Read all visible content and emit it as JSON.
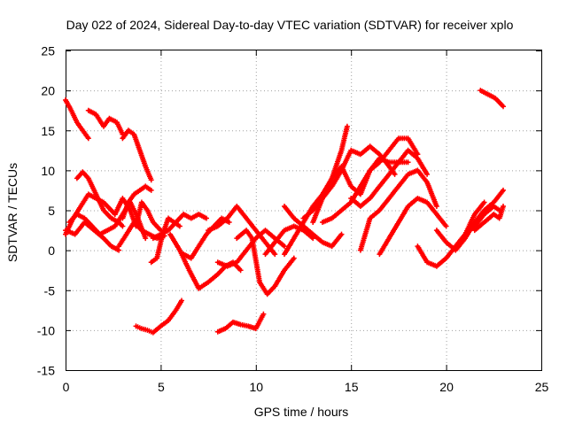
{
  "chart_data": {
    "type": "scatter",
    "title": "Day 022 of 2024, Sidereal Day-to-day VTEC variation (SDTVAR) for receiver xplo",
    "xlabel": "GPS time / hours",
    "ylabel": "SDTVAR / TECUs",
    "xlim": [
      0,
      25
    ],
    "ylim": [
      -15,
      25
    ],
    "xticks": [
      "0",
      "5",
      "10",
      "15",
      "20",
      "25"
    ],
    "yticks": [
      "-15",
      "-10",
      "-5",
      "0",
      "5",
      "10",
      "15",
      "20",
      "25"
    ],
    "grid": true,
    "marker": "+",
    "color": "#ff0000",
    "series": [
      {
        "name": "s01",
        "x": [
          0.0,
          0.3,
          0.6,
          0.9,
          1.2
        ],
        "y": [
          18.8,
          17.5,
          16.0,
          15.0,
          14.0
        ]
      },
      {
        "name": "s02",
        "x": [
          1.2,
          1.6,
          2.0,
          2.3,
          2.7,
          3.0
        ],
        "y": [
          17.5,
          17.0,
          15.5,
          16.5,
          16.0,
          14.5
        ]
      },
      {
        "name": "s03",
        "x": [
          3.0,
          3.3,
          3.6,
          3.9,
          4.2,
          4.5
        ],
        "y": [
          14.0,
          15.0,
          14.5,
          12.5,
          10.5,
          8.8
        ]
      },
      {
        "name": "s04",
        "x": [
          0.6,
          0.9,
          1.2,
          1.6,
          2.0,
          2.4,
          2.8,
          3.0
        ],
        "y": [
          9.0,
          9.8,
          9.0,
          7.0,
          5.0,
          4.0,
          3.5,
          3.0
        ]
      },
      {
        "name": "s05",
        "x": [
          3.0,
          3.3,
          3.6,
          3.9,
          4.2,
          4.5
        ],
        "y": [
          4.0,
          6.0,
          7.0,
          7.5,
          8.0,
          7.5
        ]
      },
      {
        "name": "s06",
        "x": [
          0.0,
          0.4,
          0.8,
          1.2,
          1.6,
          2.0,
          2.4,
          2.6
        ],
        "y": [
          2.0,
          4.0,
          5.5,
          7.0,
          6.5,
          6.0,
          5.0,
          4.5
        ]
      },
      {
        "name": "s07",
        "x": [
          2.6,
          3.0,
          3.4,
          3.7,
          4.0,
          4.3,
          4.6,
          5.0
        ],
        "y": [
          4.5,
          6.5,
          5.0,
          3.0,
          6.0,
          5.0,
          3.5,
          2.5
        ]
      },
      {
        "name": "s08",
        "x": [
          0.0,
          0.5,
          1.0,
          1.5,
          2.0,
          2.4,
          2.8
        ],
        "y": [
          2.5,
          2.0,
          3.5,
          2.5,
          1.5,
          0.5,
          0.0
        ]
      },
      {
        "name": "s09",
        "x": [
          2.8,
          3.2,
          3.6,
          4.0,
          4.4,
          4.8,
          5.2
        ],
        "y": [
          0.5,
          2.0,
          3.5,
          2.5,
          2.0,
          1.5,
          1.8
        ]
      },
      {
        "name": "s10",
        "x": [
          0.2,
          0.6,
          1.0,
          1.4,
          1.8,
          2.2,
          2.6,
          3.0,
          3.4,
          3.8,
          4.2
        ],
        "y": [
          3.5,
          4.5,
          4.0,
          3.0,
          2.0,
          2.5,
          3.0,
          4.5,
          6.0,
          4.0,
          1.5
        ]
      },
      {
        "name": "s11",
        "x": [
          4.6,
          5.0,
          5.4,
          5.8,
          6.2,
          6.6,
          7.0,
          7.4
        ],
        "y": [
          1.5,
          2.0,
          2.5,
          3.5,
          4.5,
          4.0,
          4.5,
          4.0
        ]
      },
      {
        "name": "s12",
        "x": [
          4.5,
          4.8,
          5.1,
          5.4,
          5.7,
          6.0
        ],
        "y": [
          -1.5,
          -1.0,
          2.0,
          4.0,
          3.5,
          3.0
        ]
      },
      {
        "name": "s13",
        "x": [
          5.5,
          6.0,
          6.5,
          7.0,
          7.5,
          8.0,
          8.4,
          8.8,
          9.2
        ],
        "y": [
          2.0,
          0.0,
          -2.5,
          -4.8,
          -4.0,
          -3.0,
          -2.0,
          -1.5,
          -2.5
        ]
      },
      {
        "name": "s14",
        "x": [
          6.2,
          6.6,
          7.0,
          7.4,
          7.8,
          8.2,
          8.6
        ],
        "y": [
          -0.5,
          -1.0,
          0.5,
          2.0,
          3.0,
          4.0,
          3.5
        ]
      },
      {
        "name": "s15",
        "x": [
          7.5,
          8.0,
          8.5,
          9.0,
          9.5,
          10.0,
          10.5,
          11.0
        ],
        "y": [
          2.5,
          3.0,
          4.0,
          5.5,
          4.0,
          2.5,
          1.0,
          -0.5
        ]
      },
      {
        "name": "s16",
        "x": [
          8.0,
          8.5,
          9.0,
          9.5,
          10.0,
          10.5,
          11.0,
          11.5
        ],
        "y": [
          -1.5,
          -2.0,
          -1.5,
          0.0,
          1.5,
          2.5,
          1.5,
          0.5
        ]
      },
      {
        "name": "s17",
        "x": [
          9.0,
          9.5,
          9.8,
          10.2,
          10.6,
          11.0,
          11.5,
          12.0
        ],
        "y": [
          1.5,
          2.5,
          1.5,
          -4.0,
          -5.5,
          -4.5,
          -2.5,
          -1.0
        ]
      },
      {
        "name": "s18",
        "x": [
          10.5,
          11.0,
          11.5,
          12.0,
          12.5,
          13.0
        ],
        "y": [
          -0.5,
          1.0,
          2.5,
          3.0,
          2.5,
          1.5
        ]
      },
      {
        "name": "s19",
        "x": [
          11.5,
          12.0,
          12.5,
          13.0,
          13.5,
          14.0,
          14.5
        ],
        "y": [
          5.5,
          4.0,
          3.0,
          2.0,
          1.0,
          0.5,
          2.0
        ]
      },
      {
        "name": "s20",
        "x": [
          11.5,
          12.0,
          12.5,
          13.0,
          13.5,
          14.0,
          14.5,
          14.8
        ],
        "y": [
          -0.5,
          1.5,
          3.5,
          5.5,
          7.0,
          9.0,
          12.5,
          15.5
        ]
      },
      {
        "name": "s21",
        "x": [
          12.5,
          13.0,
          13.5,
          14.0,
          14.5,
          15.0,
          15.5,
          16.0,
          16.5,
          17.0,
          17.3
        ],
        "y": [
          4.0,
          5.0,
          6.5,
          8.0,
          10.0,
          12.5,
          12.0,
          13.0,
          12.0,
          10.5,
          9.5
        ]
      },
      {
        "name": "s22",
        "x": [
          13.0,
          13.5,
          14.0,
          14.5,
          15.0,
          15.5,
          16.0,
          16.5,
          17.0,
          17.5,
          18.0,
          18.5
        ],
        "y": [
          3.5,
          6.5,
          9.0,
          10.5,
          8.0,
          7.0,
          10.0,
          11.0,
          12.5,
          14.0,
          14.0,
          12.0
        ]
      },
      {
        "name": "s23",
        "x": [
          13.5,
          14.0,
          14.5,
          15.0,
          15.5,
          16.0,
          16.5,
          17.0,
          17.5,
          18.0
        ],
        "y": [
          3.5,
          4.0,
          5.0,
          6.0,
          8.0,
          10.0,
          11.5,
          11.0,
          11.0,
          11.0
        ]
      },
      {
        "name": "s24",
        "x": [
          15.0,
          15.5,
          16.0,
          16.5,
          17.0,
          17.5,
          18.0,
          18.5,
          19.0
        ],
        "y": [
          6.5,
          5.5,
          6.5,
          8.0,
          9.5,
          11.0,
          12.5,
          11.5,
          9.5
        ]
      },
      {
        "name": "s25",
        "x": [
          15.5,
          16.0,
          16.5,
          17.0,
          17.5,
          18.0,
          18.5,
          19.0,
          19.5
        ],
        "y": [
          0.0,
          4.0,
          5.0,
          6.5,
          8.0,
          9.5,
          10.0,
          8.5,
          5.5
        ]
      },
      {
        "name": "s26",
        "x": [
          16.5,
          17.0,
          17.5,
          18.0,
          18.5,
          19.0,
          19.5,
          20.0
        ],
        "y": [
          -0.5,
          1.5,
          3.5,
          5.5,
          6.5,
          6.0,
          4.5,
          3.0
        ]
      },
      {
        "name": "s27",
        "x": [
          18.5,
          19.0,
          19.5,
          20.0,
          20.5,
          21.0,
          21.5,
          22.0
        ],
        "y": [
          0.5,
          -1.5,
          -2.0,
          -1.0,
          0.5,
          2.0,
          4.5,
          6.0
        ]
      },
      {
        "name": "s28",
        "x": [
          19.5,
          20.0,
          20.5,
          21.0,
          21.5,
          22.0,
          22.5,
          23.0
        ],
        "y": [
          2.5,
          1.0,
          0.0,
          1.5,
          3.5,
          5.0,
          6.0,
          7.5
        ]
      },
      {
        "name": "s29",
        "x": [
          20.5,
          21.0,
          21.5,
          22.0,
          22.5,
          22.8
        ],
        "y": [
          0.5,
          2.0,
          3.0,
          4.5,
          5.5,
          5.0
        ]
      },
      {
        "name": "s30",
        "x": [
          21.5,
          22.0,
          22.5,
          22.8,
          23.0
        ],
        "y": [
          2.5,
          3.5,
          4.5,
          4.0,
          5.5
        ]
      },
      {
        "name": "s31",
        "x": [
          21.8,
          22.2,
          22.6,
          23.0
        ],
        "y": [
          20.0,
          19.5,
          19.0,
          18.0
        ]
      },
      {
        "name": "s32",
        "x": [
          3.7,
          4.0,
          4.3,
          4.6,
          5.0,
          5.4,
          5.8,
          6.1
        ],
        "y": [
          -9.5,
          -9.8,
          -10.0,
          -10.3,
          -9.5,
          -8.8,
          -7.5,
          -6.3
        ]
      },
      {
        "name": "s33",
        "x": [
          8.0,
          8.4,
          8.8,
          9.2,
          9.6,
          10.0,
          10.4
        ],
        "y": [
          -10.2,
          -9.8,
          -9.0,
          -9.3,
          -9.5,
          -9.8,
          -8.0
        ]
      }
    ]
  }
}
